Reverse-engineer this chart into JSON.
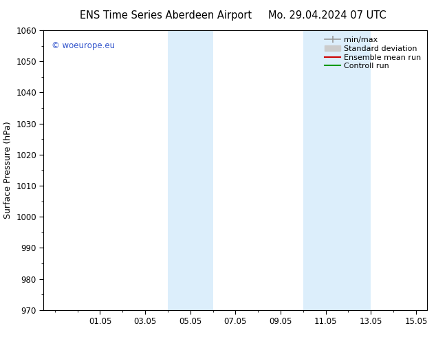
{
  "title_left": "ENS Time Series Aberdeen Airport",
  "title_right": "Mo. 29.04.2024 07 UTC",
  "ylabel": "Surface Pressure (hPa)",
  "ylim": [
    970,
    1060
  ],
  "yticks": [
    970,
    980,
    990,
    1000,
    1010,
    1020,
    1030,
    1040,
    1050,
    1060
  ],
  "xlim_start": -0.5,
  "xlim_end": 16.5,
  "xtick_positions": [
    2,
    4,
    6,
    8,
    10,
    12,
    14,
    16
  ],
  "xtick_labels": [
    "01.05",
    "03.05",
    "05.05",
    "07.05",
    "09.05",
    "11.05",
    "13.05",
    "15.05"
  ],
  "shade_bands": [
    {
      "xmin": 5.0,
      "xmax": 7.0
    },
    {
      "xmin": 11.0,
      "xmax": 14.0
    }
  ],
  "shade_color": "#dceefb",
  "watermark": "© woeurope.eu",
  "watermark_color": "#3355cc",
  "legend_items": [
    {
      "label": "min/max",
      "color": "#999999"
    },
    {
      "label": "Standard deviation",
      "color": "#cccccc"
    },
    {
      "label": "Ensemble mean run",
      "color": "#cc0000"
    },
    {
      "label": "Controll run",
      "color": "#009900"
    }
  ],
  "background_color": "#ffffff",
  "plot_bg_color": "#ffffff",
  "tick_label_fontsize": 8.5,
  "axis_label_fontsize": 9,
  "title_fontsize": 10.5,
  "legend_fontsize": 8
}
